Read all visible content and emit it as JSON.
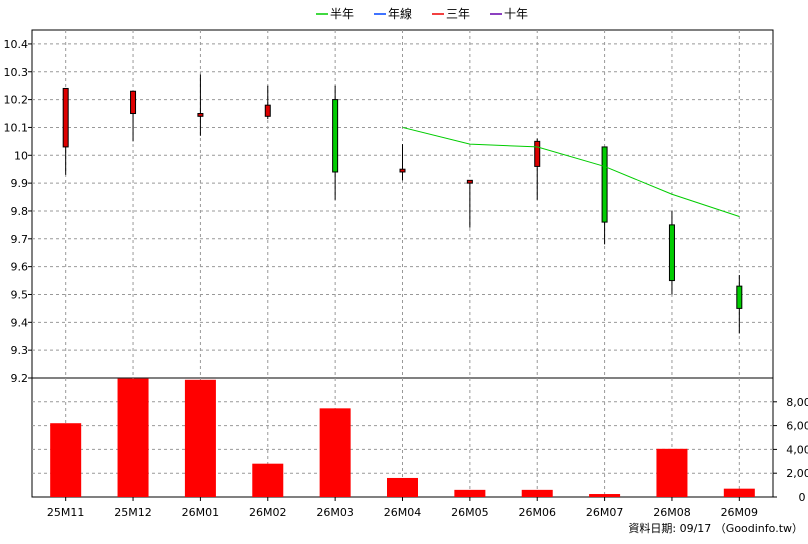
{
  "legend": [
    {
      "label": "半年",
      "color": "#00cc00"
    },
    {
      "label": "年線",
      "color": "#0044ff"
    },
    {
      "label": "三年",
      "color": "#ee0000"
    },
    {
      "label": "十年",
      "color": "#6600aa"
    }
  ],
  "footer": "資料日期: 09/17 （Goodinfo.tw）",
  "chart_data": [
    {
      "type": "candlestick",
      "categories": [
        "25M11",
        "25M12",
        "26M01",
        "26M02",
        "26M03",
        "26M04",
        "26M05",
        "26M06",
        "26M07",
        "26M08",
        "26M09"
      ],
      "ohlc": [
        {
          "open": 10.03,
          "high": 10.24,
          "low": 9.93,
          "close": 10.24
        },
        {
          "open": 10.15,
          "high": 10.23,
          "low": 10.05,
          "close": 10.23
        },
        {
          "open": 10.14,
          "high": 10.29,
          "low": 10.07,
          "close": 10.15
        },
        {
          "open": 10.14,
          "high": 10.25,
          "low": 10.13,
          "close": 10.18
        },
        {
          "open": 10.2,
          "high": 10.25,
          "low": 9.84,
          "close": 9.94
        },
        {
          "open": 9.94,
          "high": 10.04,
          "low": 9.91,
          "close": 9.95
        },
        {
          "open": 9.9,
          "high": 9.91,
          "low": 9.74,
          "close": 9.91
        },
        {
          "open": 9.96,
          "high": 10.06,
          "low": 9.84,
          "close": 10.05
        },
        {
          "open": 10.03,
          "high": 10.03,
          "low": 9.68,
          "close": 9.76
        },
        {
          "open": 9.75,
          "high": 9.8,
          "low": 9.5,
          "close": 9.55
        },
        {
          "open": 9.53,
          "high": 9.57,
          "low": 9.36,
          "close": 9.45
        }
      ],
      "up_color": "#dd0000",
      "down_color": "#00cc00",
      "series": [
        {
          "name": "半年",
          "color": "#00cc00",
          "values": [
            null,
            null,
            null,
            null,
            null,
            10.1,
            10.04,
            10.03,
            9.96,
            9.86,
            9.78
          ]
        },
        {
          "name": "年線",
          "color": "#0044ff",
          "values": [
            null,
            null,
            null,
            null,
            null,
            null,
            null,
            null,
            null,
            null,
            null
          ]
        },
        {
          "name": "三年",
          "color": "#ee0000",
          "values": [
            null,
            null,
            null,
            null,
            null,
            null,
            null,
            null,
            null,
            null,
            null
          ]
        },
        {
          "name": "十年",
          "color": "#6600aa",
          "values": [
            null,
            null,
            null,
            null,
            null,
            null,
            null,
            null,
            null,
            null,
            null
          ]
        }
      ],
      "ylim": [
        9.2,
        10.45
      ],
      "yticks": [
        9.2,
        9.3,
        9.4,
        9.5,
        9.6,
        9.7,
        9.8,
        9.9,
        10,
        10.1,
        10.2,
        10.3,
        10.4
      ],
      "ytick_labels": [
        "9.2",
        "9.3",
        "9.4",
        "9.5",
        "9.6",
        "9.7",
        "9.8",
        "9.9",
        "10",
        "10.1",
        "10.2",
        "10.3",
        "10.4"
      ],
      "grid": true,
      "legend_position": "top-center"
    },
    {
      "type": "bar",
      "categories": [
        "25M11",
        "25M12",
        "26M01",
        "26M02",
        "26M03",
        "26M04",
        "26M05",
        "26M06",
        "26M07",
        "26M08",
        "26M09"
      ],
      "values": [
        6200,
        9950,
        9850,
        2800,
        7450,
        1600,
        600,
        600,
        250,
        4050,
        700
      ],
      "color": "#ff0000",
      "ylim": [
        0,
        10000
      ],
      "yticks": [
        0,
        2000,
        4000,
        6000,
        8000
      ],
      "ytick_labels": [
        "0",
        "2,000",
        "4,000",
        "6,000",
        "8,000"
      ],
      "grid": true
    }
  ]
}
